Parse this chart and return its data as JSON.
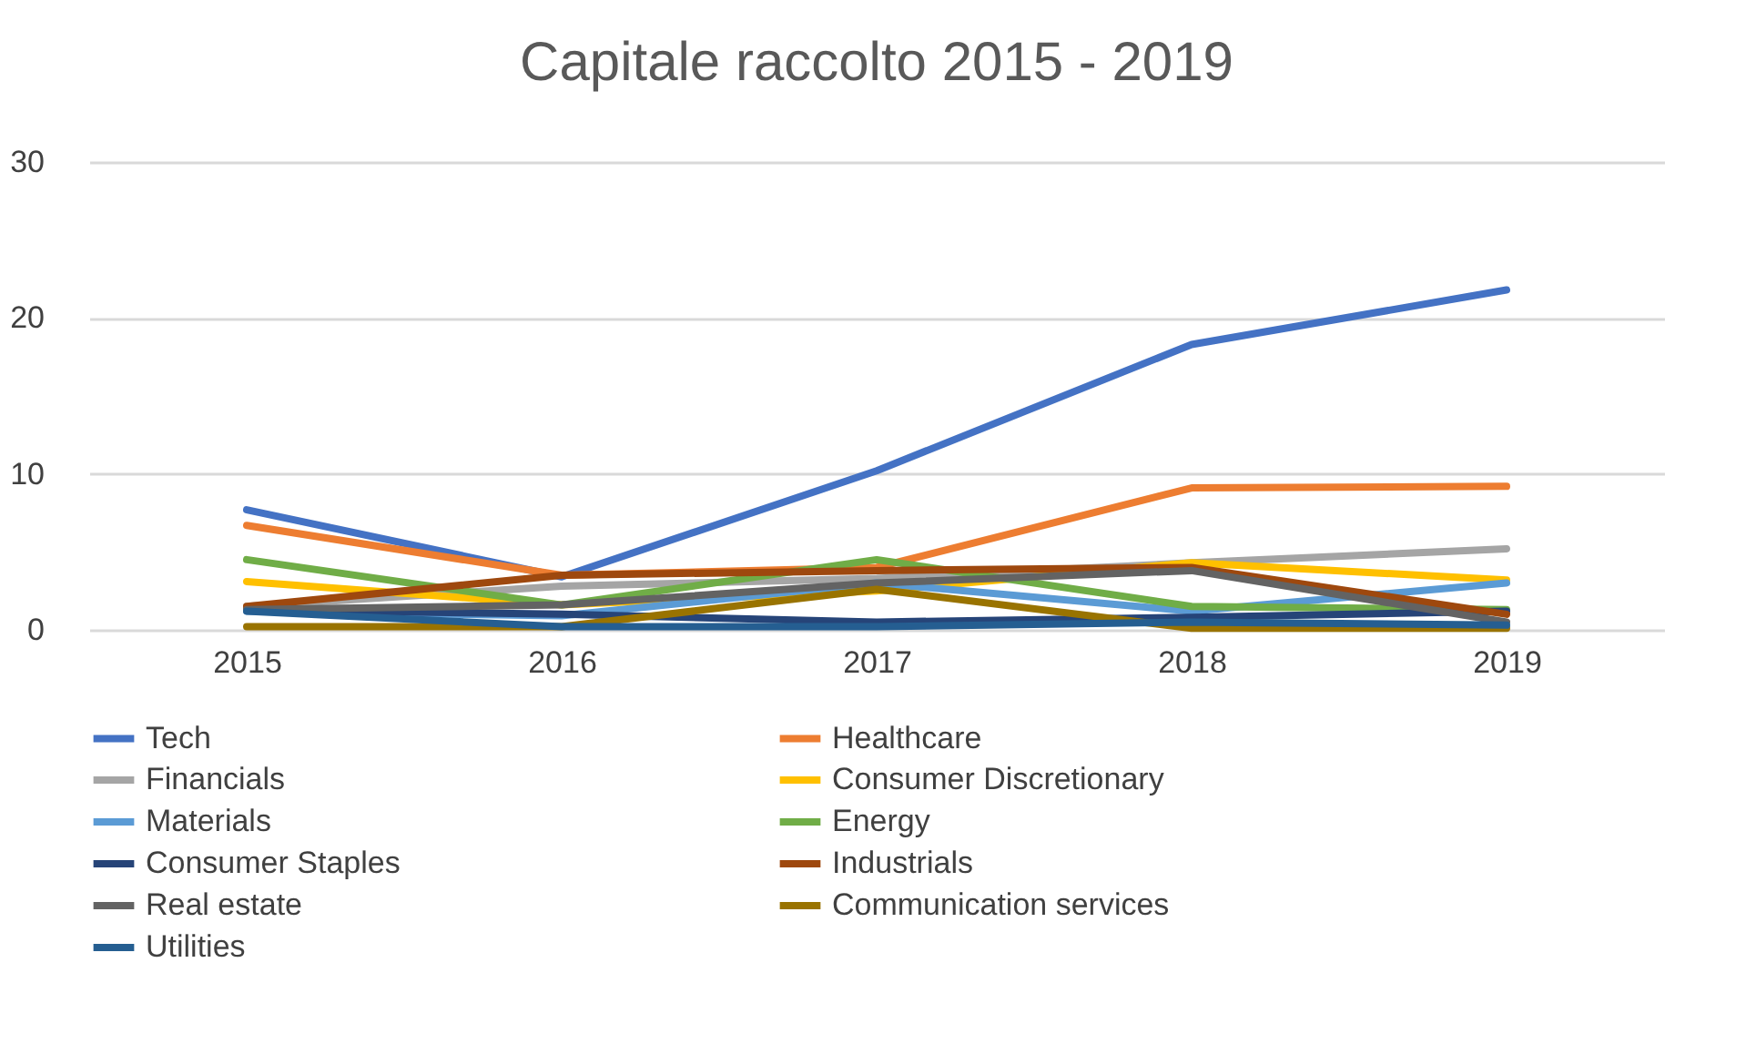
{
  "chart_data": {
    "type": "line",
    "title": "Capitale raccolto 2015 - 2019",
    "categories": [
      "2015",
      "2016",
      "2017",
      "2018",
      "2019"
    ],
    "ylim": [
      0,
      30
    ],
    "yticks": [
      0,
      10,
      20,
      30
    ],
    "grid": "y",
    "legend": "bottom",
    "marker": "none",
    "line_style": "solid",
    "series": [
      {
        "name": "Tech",
        "color": "#4472c4",
        "values": [
          7.7,
          3.4,
          10.2,
          18.3,
          21.8
        ]
      },
      {
        "name": "Healthcare",
        "color": "#ed7d31",
        "values": [
          6.7,
          3.5,
          4.0,
          9.1,
          9.2
        ]
      },
      {
        "name": "Financials",
        "color": "#a5a5a5",
        "values": [
          1.5,
          2.8,
          3.3,
          4.3,
          5.2
        ]
      },
      {
        "name": "Consumer Discretionary",
        "color": "#ffc000",
        "values": [
          3.1,
          1.6,
          2.5,
          4.3,
          3.2
        ]
      },
      {
        "name": "Materials",
        "color": "#5b9bd5",
        "values": [
          1.2,
          0.9,
          3.0,
          1.2,
          3.0
        ]
      },
      {
        "name": "Energy",
        "color": "#70ad47",
        "values": [
          4.5,
          1.6,
          4.5,
          1.5,
          1.3
        ]
      },
      {
        "name": "Consumer Staples",
        "color": "#264478",
        "values": [
          1.3,
          1.0,
          0.5,
          0.8,
          1.2
        ]
      },
      {
        "name": "Industrials",
        "color": "#9e480e",
        "values": [
          1.5,
          3.5,
          3.8,
          4.0,
          1.0
        ]
      },
      {
        "name": "Real estate",
        "color": "#636363",
        "values": [
          1.3,
          1.6,
          3.0,
          3.8,
          0.5
        ]
      },
      {
        "name": "Communication services",
        "color": "#997300",
        "values": [
          0.2,
          0.2,
          2.6,
          0.1,
          0.1
        ]
      },
      {
        "name": "Utilities",
        "color": "#255e91",
        "values": [
          1.2,
          0.2,
          0.2,
          0.5,
          0.3
        ]
      }
    ]
  }
}
